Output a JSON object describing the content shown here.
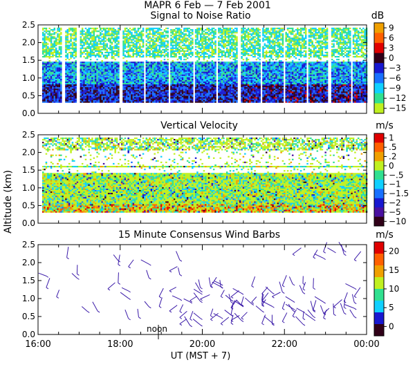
{
  "header": {
    "title": "MAPR   6 Feb  —  7 Feb 2001"
  },
  "x_axis": {
    "ticks": [
      "16:00",
      "18:00",
      "20:00",
      "22:00",
      "00:00"
    ],
    "label": "UT  (MST + 7)",
    "noon_label": "noon"
  },
  "y_axis_shared_label": "Altitude (km)",
  "colors": {
    "background": "#ffffff",
    "axis": "#000000",
    "barb": "#3a1aa8"
  },
  "chart_data": [
    {
      "type": "heatmap",
      "id": "snr",
      "title": "Signal to Noise Ratio",
      "units": "dB",
      "xlim": [
        16,
        24
      ],
      "ylim": [
        0,
        2.5
      ],
      "yticks": [
        "0.0",
        "0.5",
        "1.0",
        "1.5",
        "2.0",
        "2.5"
      ],
      "colorbar": {
        "labels": [
          "9",
          "6",
          "3",
          "0",
          "−3",
          "−6",
          "−9",
          "−12",
          "−15"
        ],
        "colors": [
          "#f0a000",
          "#ff6000",
          "#e00000",
          "#300018",
          "#1818d0",
          "#1870ff",
          "#10d0ff",
          "#30e090",
          "#c0f020"
        ]
      },
      "gaps_hours": [
        [
          16.9,
          17.0
        ],
        [
          17.95,
          18.05
        ],
        [
          18.55,
          18.6
        ],
        [
          19.15,
          19.2
        ],
        [
          19.75,
          19.8
        ],
        [
          20.3,
          20.35
        ],
        [
          20.85,
          20.9
        ],
        [
          21.4,
          21.45
        ],
        [
          21.95,
          22.0
        ],
        [
          22.5,
          22.55
        ],
        [
          23.05,
          23.1
        ],
        [
          23.6,
          23.65
        ]
      ],
      "mid_gap_km": [
        1.45,
        1.55
      ]
    },
    {
      "type": "heatmap",
      "id": "vertical-velocity",
      "title": "Vertical Velocity",
      "units": "m/s",
      "xlim": [
        16,
        24
      ],
      "ylim": [
        0,
        2.5
      ],
      "yticks": [
        "0.0",
        "0.5",
        "1.0",
        "1.5",
        "2.0",
        "2.5"
      ],
      "colorbar": {
        "labels": [
          "1",
          ".5",
          ".2",
          "0",
          "−.5",
          "−1",
          "−1.5",
          "−2",
          "−5",
          "−10"
        ],
        "colors": [
          "#e00000",
          "#ff6000",
          "#f0a000",
          "#c0f020",
          "#30e090",
          "#10d0ff",
          "#1870ff",
          "#1818d0",
          "#4a10a0",
          "#300018"
        ]
      }
    },
    {
      "type": "scatter",
      "id": "wind-barbs",
      "title": "15 Minute Consensus Wind Barbs",
      "units": "m/s",
      "xlim": [
        16,
        24
      ],
      "ylim": [
        0,
        2.5
      ],
      "yticks": [
        "0.0",
        "0.5",
        "1.0",
        "1.5",
        "2.0",
        "2.5"
      ],
      "colorbar": {
        "labels": [
          "20",
          "15",
          "10",
          "5",
          "0"
        ],
        "colors": [
          "#e00000",
          "#ff6000",
          "#f0a000",
          "#c0f020",
          "#30e090",
          "#10d0ff",
          "#1818d0",
          "#300018"
        ]
      }
    }
  ]
}
